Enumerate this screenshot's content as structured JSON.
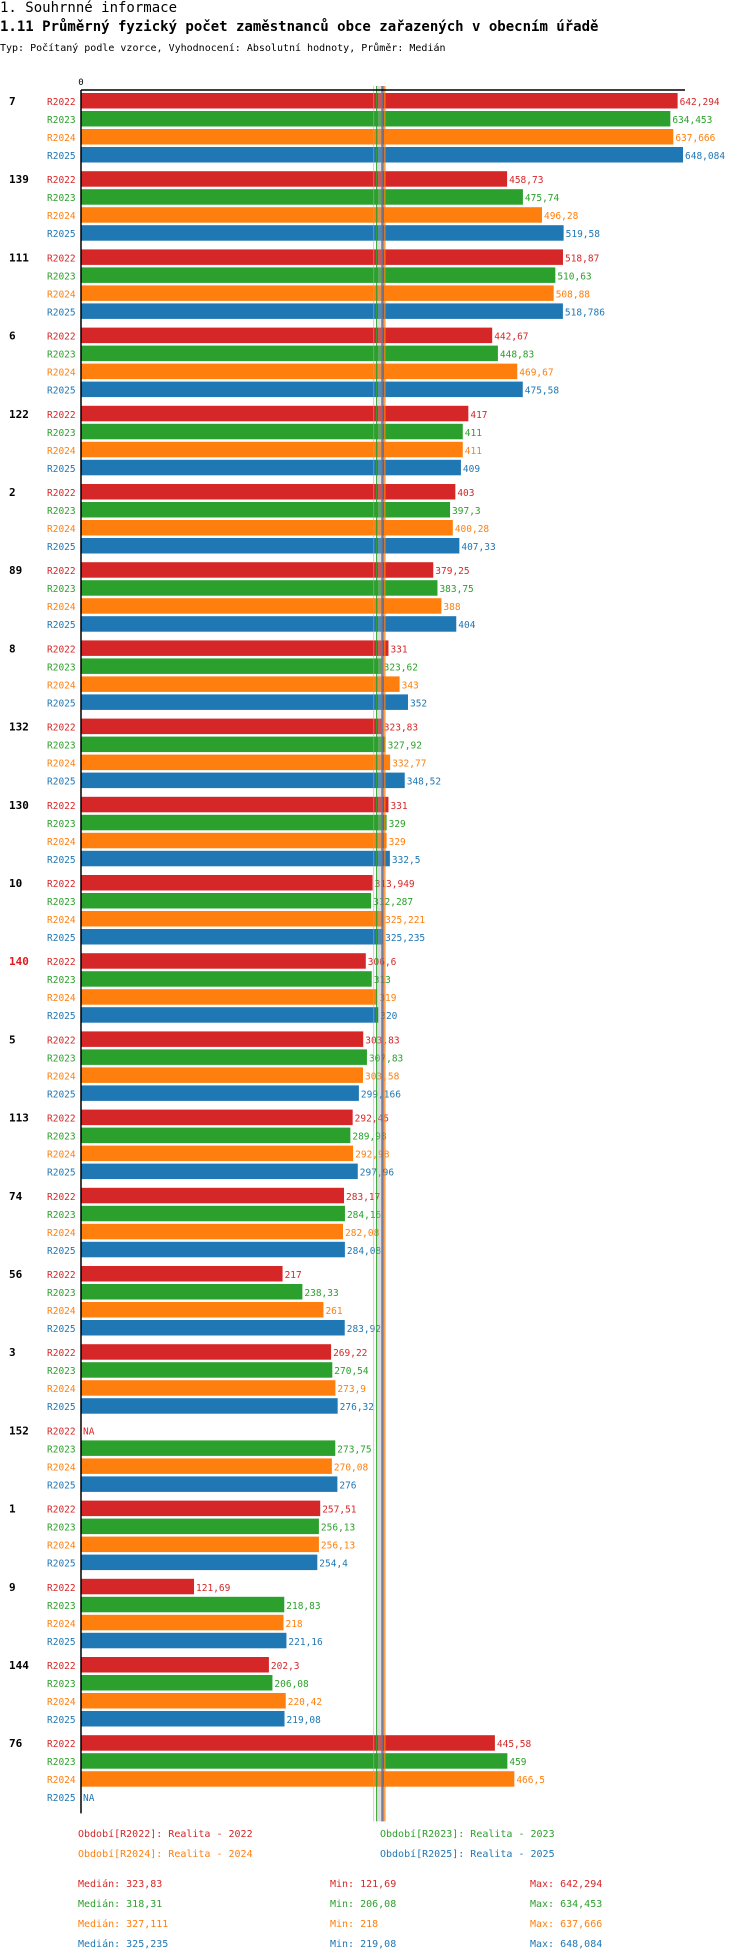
{
  "header": {
    "section": "1. Souhrnné informace",
    "title": "1.11 Průměrný fyzický počet zaměstnanců obce zařazených v obecním úřadě",
    "subtitle": "Typ: Počítaný podle vzorce, Vyhodnocení: Absolutní hodnoty, Průměr: Medián"
  },
  "colors": {
    "R2022": "#d62728",
    "R2023": "#2ca02c",
    "R2024": "#ff7f0e",
    "R2025": "#1f77b4"
  },
  "chart_data": {
    "type": "bar",
    "orientation": "horizontal",
    "title": "1.11 Průměrný fyzický počet zaměstnanců obce zařazených v obecním úřadě",
    "x_tick_labels": [
      "0"
    ],
    "xlim": [
      0,
      648.084
    ],
    "series_names": [
      "R2022",
      "R2023",
      "R2024",
      "R2025"
    ],
    "highlighted_category": "140",
    "groups": [
      {
        "id": "7",
        "labels": [
          "642,294",
          "634,453",
          "637,666",
          "648,084"
        ],
        "values": [
          642.294,
          634.453,
          637.666,
          648.084
        ]
      },
      {
        "id": "139",
        "labels": [
          "458,73",
          "475,74",
          "496,28",
          "519,58"
        ],
        "values": [
          458.73,
          475.74,
          496.28,
          519.58
        ]
      },
      {
        "id": "111",
        "labels": [
          "518,87",
          "510,63",
          "508,88",
          "518,786"
        ],
        "values": [
          518.87,
          510.63,
          508.88,
          518.786
        ]
      },
      {
        "id": "6",
        "labels": [
          "442,67",
          "448,83",
          "469,67",
          "475,58"
        ],
        "values": [
          442.67,
          448.83,
          469.67,
          475.58
        ]
      },
      {
        "id": "122",
        "labels": [
          "417",
          "411",
          "411",
          "409"
        ],
        "values": [
          417,
          411,
          411,
          409
        ]
      },
      {
        "id": "2",
        "labels": [
          "403",
          "397,3",
          "400,28",
          "407,33"
        ],
        "values": [
          403,
          397.3,
          400.28,
          407.33
        ]
      },
      {
        "id": "89",
        "labels": [
          "379,25",
          "383,75",
          "388",
          "404"
        ],
        "values": [
          379.25,
          383.75,
          388,
          404
        ]
      },
      {
        "id": "8",
        "labels": [
          "331",
          "323,62",
          "343",
          "352"
        ],
        "values": [
          331,
          323.62,
          343,
          352
        ]
      },
      {
        "id": "132",
        "labels": [
          "323,83",
          "327,92",
          "332,77",
          "348,52"
        ],
        "values": [
          323.83,
          327.92,
          332.77,
          348.52
        ]
      },
      {
        "id": "130",
        "labels": [
          "331",
          "329",
          "329",
          "332,5"
        ],
        "values": [
          331,
          329,
          329,
          332.5
        ]
      },
      {
        "id": "10",
        "labels": [
          "313,949",
          "312,287",
          "325,221",
          "325,235"
        ],
        "values": [
          313.949,
          312.287,
          325.221,
          325.235
        ]
      },
      {
        "id": "140",
        "labels": [
          "306,6",
          "313",
          "319",
          "320"
        ],
        "values": [
          306.6,
          313,
          319,
          320
        ]
      },
      {
        "id": "5",
        "labels": [
          "303,83",
          "307,83",
          "303,58",
          "299,166"
        ],
        "values": [
          303.83,
          307.83,
          303.58,
          299.166
        ]
      },
      {
        "id": "113",
        "labels": [
          "292,45",
          "289,98",
          "292,98",
          "297,96"
        ],
        "values": [
          292.45,
          289.98,
          292.98,
          297.96
        ]
      },
      {
        "id": "74",
        "labels": [
          "283,17",
          "284,16",
          "282,08",
          "284,08"
        ],
        "values": [
          283.17,
          284.16,
          282.08,
          284.08
        ]
      },
      {
        "id": "56",
        "labels": [
          "217",
          "238,33",
          "261",
          "283,92"
        ],
        "values": [
          217,
          238.33,
          261,
          283.92
        ]
      },
      {
        "id": "3",
        "labels": [
          "269,22",
          "270,54",
          "273,9",
          "276,32"
        ],
        "values": [
          269.22,
          270.54,
          273.9,
          276.32
        ]
      },
      {
        "id": "152",
        "labels": [
          "NA",
          "273,75",
          "270,08",
          "276"
        ],
        "values": [
          null,
          273.75,
          270.08,
          276
        ]
      },
      {
        "id": "1",
        "labels": [
          "257,51",
          "256,13",
          "256,13",
          "254,4"
        ],
        "values": [
          257.51,
          256.13,
          256.13,
          254.4
        ]
      },
      {
        "id": "9",
        "labels": [
          "121,69",
          "218,83",
          "218",
          "221,16"
        ],
        "values": [
          121.69,
          218.83,
          218,
          221.16
        ]
      },
      {
        "id": "144",
        "labels": [
          "202,3",
          "206,08",
          "220,42",
          "219,08"
        ],
        "values": [
          202.3,
          206.08,
          220.42,
          219.08
        ]
      },
      {
        "id": "76",
        "labels": [
          "445,58",
          "459",
          "466,5",
          "NA"
        ],
        "values": [
          445.58,
          459,
          466.5,
          null
        ]
      }
    ],
    "median_lines": [
      323.83,
      318.31,
      327.111,
      325.235
    ],
    "legend": [
      {
        "key": "R2022",
        "text": "Období[R2022]: Realita - 2022"
      },
      {
        "key": "R2023",
        "text": "Období[R2023]: Realita - 2023"
      },
      {
        "key": "R2024",
        "text": "Období[R2024]: Realita - 2024"
      },
      {
        "key": "R2025",
        "text": "Období[R2025]: Realita - 2025"
      }
    ],
    "stats": [
      {
        "key": "R2022",
        "median": "Medián: 323,83",
        "min": "Min: 121,69",
        "max": "Max: 642,294"
      },
      {
        "key": "R2023",
        "median": "Medián: 318,31",
        "min": "Min: 206,08",
        "max": "Max: 634,453"
      },
      {
        "key": "R2024",
        "median": "Medián: 327,111",
        "min": "Min: 218",
        "max": "Max: 637,666"
      },
      {
        "key": "R2025",
        "median": "Medián: 325,235",
        "min": "Min: 219,08",
        "max": "Max: 648,084"
      }
    ]
  }
}
